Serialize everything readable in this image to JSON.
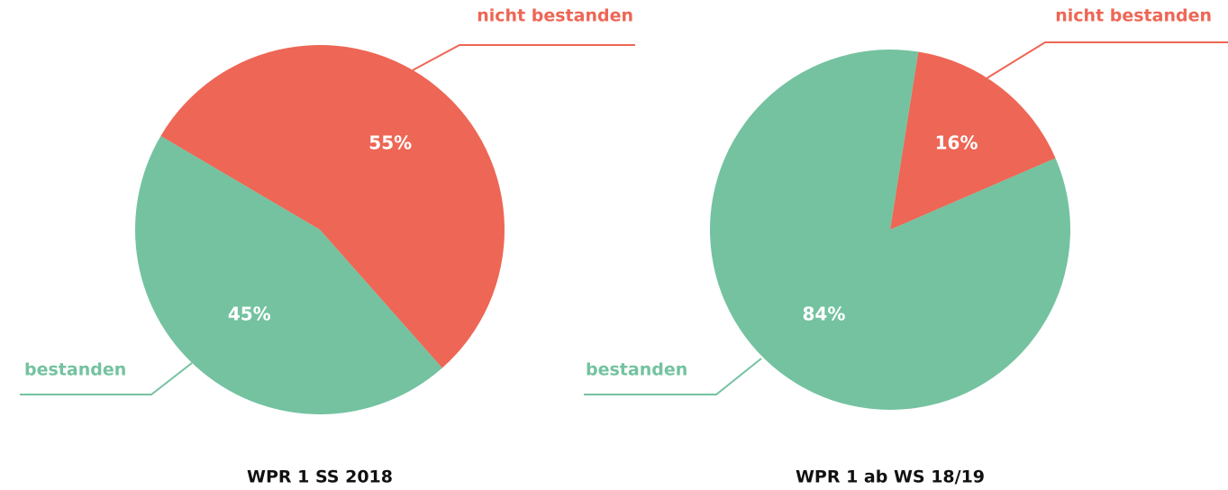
{
  "chart_data": [
    {
      "type": "pie",
      "title": "WPR 1 SS 2018",
      "categories": [
        "nicht bestanden",
        "bestanden"
      ],
      "values": [
        55,
        45
      ],
      "value_labels": [
        "55%",
        "45%"
      ],
      "colors": [
        "#ee6655",
        "#74c2a0"
      ]
    },
    {
      "type": "pie",
      "title": "WPR 1 ab WS 18/19",
      "categories": [
        "nicht bestanden",
        "bestanden"
      ],
      "values": [
        16,
        84
      ],
      "value_labels": [
        "16%",
        "84%"
      ],
      "colors": [
        "#ee6655",
        "#74c2a0"
      ]
    }
  ]
}
